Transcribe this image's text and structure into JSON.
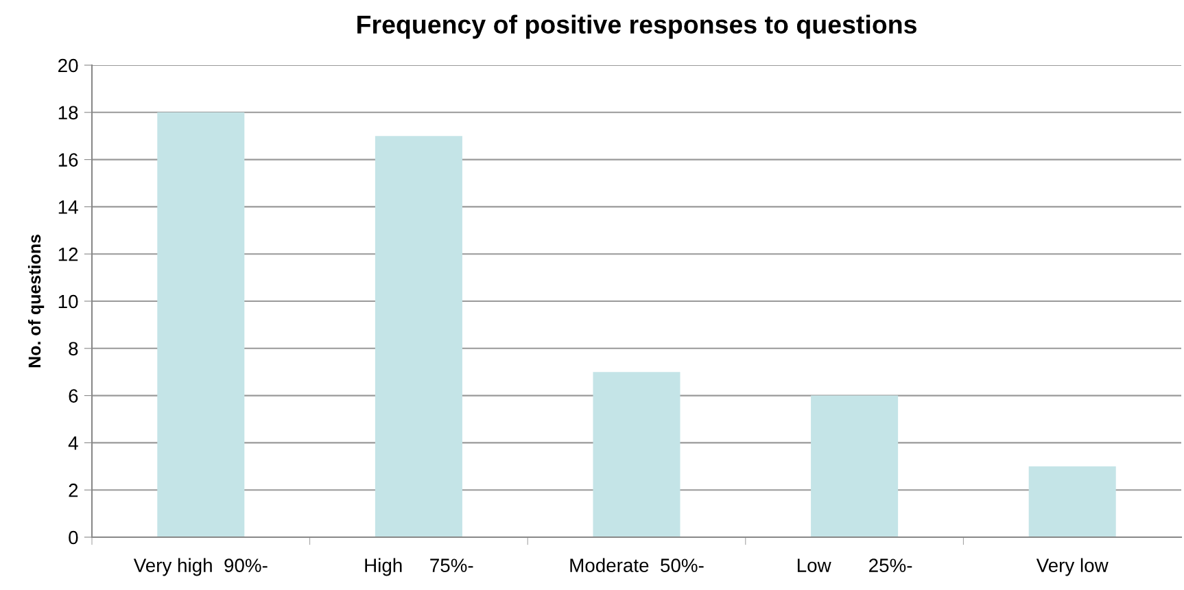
{
  "chart_data": {
    "type": "bar",
    "title": "Frequency of positive responses to questions",
    "ylabel": "No. of questions",
    "categories": [
      "Very high  90%-",
      "High     75%-",
      "Moderate  50%-",
      "Low       25%-",
      "Very low"
    ],
    "values": [
      18,
      17,
      7,
      6,
      3
    ],
    "color": "#c4e4e7",
    "ylim": [
      0,
      20
    ],
    "yticks": [
      0,
      2,
      4,
      6,
      8,
      10,
      12,
      14,
      16,
      18,
      20
    ],
    "grid": "y"
  }
}
